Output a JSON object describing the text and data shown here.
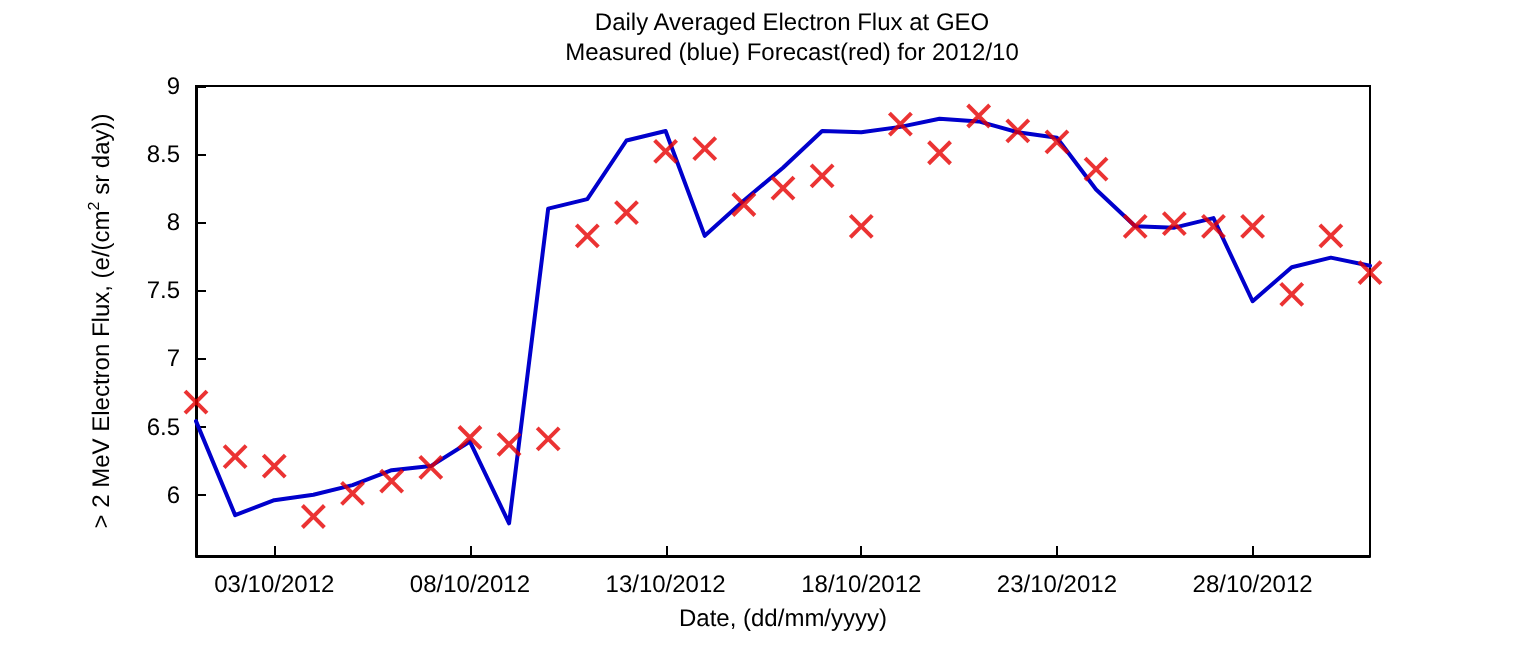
{
  "chart_data": {
    "type": "line",
    "title": "Daily Averaged Electron Flux at GEO",
    "subtitle": "Measured (blue) Forecast(red) for 2012/10",
    "xlabel": "Date, (dd/mm/yyyy)",
    "ylabel": "> 2 MeV Electron Flux, (e/(cm$^{2}$ sr day))",
    "x": [
      "2012-10-01",
      "2012-10-02",
      "2012-10-03",
      "2012-10-04",
      "2012-10-05",
      "2012-10-06",
      "2012-10-07",
      "2012-10-08",
      "2012-10-09",
      "2012-10-10",
      "2012-10-11",
      "2012-10-12",
      "2012-10-13",
      "2012-10-14",
      "2012-10-15",
      "2012-10-16",
      "2012-10-17",
      "2012-10-18",
      "2012-10-19",
      "2012-10-20",
      "2012-10-21",
      "2012-10-22",
      "2012-10-23",
      "2012-10-24",
      "2012-10-25",
      "2012-10-26",
      "2012-10-27",
      "2012-10-28",
      "2012-10-29",
      "2012-10-30",
      "2012-10-31"
    ],
    "series": [
      {
        "color": "#0000cc",
        "marker": "none",
        "line_style": "solid",
        "values": [
          6.54,
          5.85,
          5.96,
          6.0,
          6.07,
          6.18,
          6.21,
          6.39,
          5.79,
          8.1,
          8.17,
          8.6,
          8.67,
          7.9,
          8.16,
          8.4,
          8.67,
          8.66,
          8.7,
          8.76,
          8.74,
          8.66,
          8.62,
          8.24,
          7.97,
          7.96,
          8.03,
          7.42,
          7.67,
          7.74,
          7.68
        ]
      },
      {
        "type": "scatter",
        "color": "#e60000",
        "marker": "cross",
        "values": [
          6.68,
          6.28,
          6.21,
          5.84,
          6.01,
          6.1,
          6.2,
          6.42,
          6.37,
          6.41,
          7.9,
          8.07,
          8.52,
          8.54,
          8.13,
          8.25,
          8.34,
          7.97,
          8.72,
          8.51,
          8.78,
          8.67,
          8.59,
          8.39,
          7.97,
          7.99,
          7.97,
          7.97,
          7.47,
          7.9,
          7.63
        ]
      }
    ],
    "xlim": [
      "2012-10-01",
      "2012-10-31"
    ],
    "xticks": [
      {
        "value": "2012-10-03",
        "label": "03/10/2012"
      },
      {
        "value": "2012-10-08",
        "label": "08/10/2012"
      },
      {
        "value": "2012-10-13",
        "label": "13/10/2012"
      },
      {
        "value": "2012-10-18",
        "label": "18/10/2012"
      },
      {
        "value": "2012-10-23",
        "label": "23/10/2012"
      },
      {
        "value": "2012-10-28",
        "label": "28/10/2012"
      }
    ],
    "ylim": [
      5.55,
      9
    ],
    "yticks": [
      6,
      6.5,
      7,
      7.5,
      8,
      8.5,
      9
    ],
    "grid": false
  }
}
